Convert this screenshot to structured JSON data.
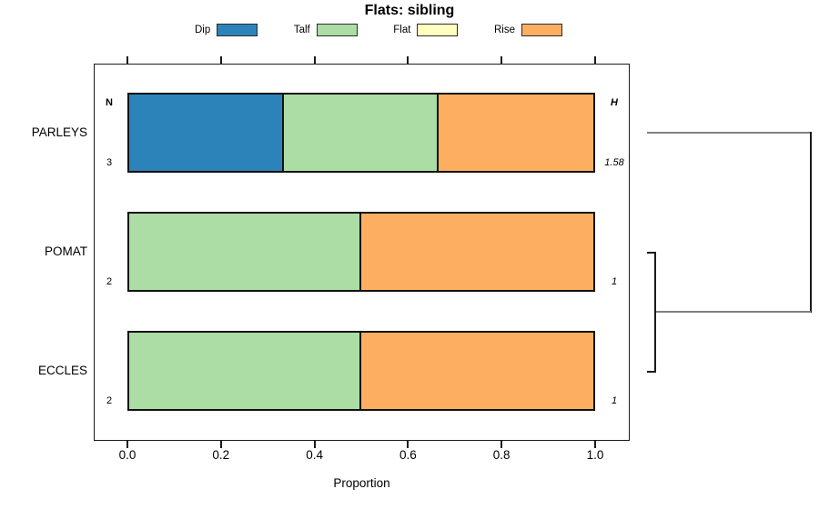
{
  "title": "Flats: sibling",
  "legend": {
    "items": [
      {
        "label": "Dip",
        "color": "#2B83BA"
      },
      {
        "label": "Talf",
        "color": "#ABDDA4"
      },
      {
        "label": "Flat",
        "color": "#FFFFBF"
      },
      {
        "label": "Rise",
        "color": "#FDAE61"
      }
    ]
  },
  "chart_data": {
    "type": "bar",
    "orientation": "horizontal-stacked-proportion",
    "title": "Flats: sibling",
    "xlabel": "Proportion",
    "xlim": [
      0,
      1
    ],
    "x_ticks": [
      "0.0",
      "0.2",
      "0.4",
      "0.6",
      "0.8",
      "1.0"
    ],
    "grid": false,
    "legend_position": "top",
    "categories": [
      "PARLEYS",
      "POMAT",
      "ECCLES"
    ],
    "series": [
      {
        "name": "Dip",
        "color": "#2B83BA",
        "values": [
          0.3333,
          0,
          0
        ]
      },
      {
        "name": "Talf",
        "color": "#ABDDA4",
        "values": [
          0.3334,
          0.5,
          0.5
        ]
      },
      {
        "name": "Flat",
        "color": "#FFFFBF",
        "values": [
          0,
          0,
          0
        ]
      },
      {
        "name": "Rise",
        "color": "#FDAE61",
        "values": [
          0.3333,
          0.5,
          0.5
        ]
      }
    ],
    "n_header": "N",
    "n_values": [
      "3",
      "2",
      "2"
    ],
    "h_header": "H",
    "h_values": [
      "1.58",
      "1",
      "1"
    ],
    "annotation": "right-side dendrogram: POMAT and ECCLES join at low height, PARLEYS joins at root"
  },
  "colors": {
    "bar_border": "#111111",
    "axis": "#1a1a1a",
    "dendrogram_gray": "#808080",
    "dendrogram_dark": "#1a1a1a"
  }
}
